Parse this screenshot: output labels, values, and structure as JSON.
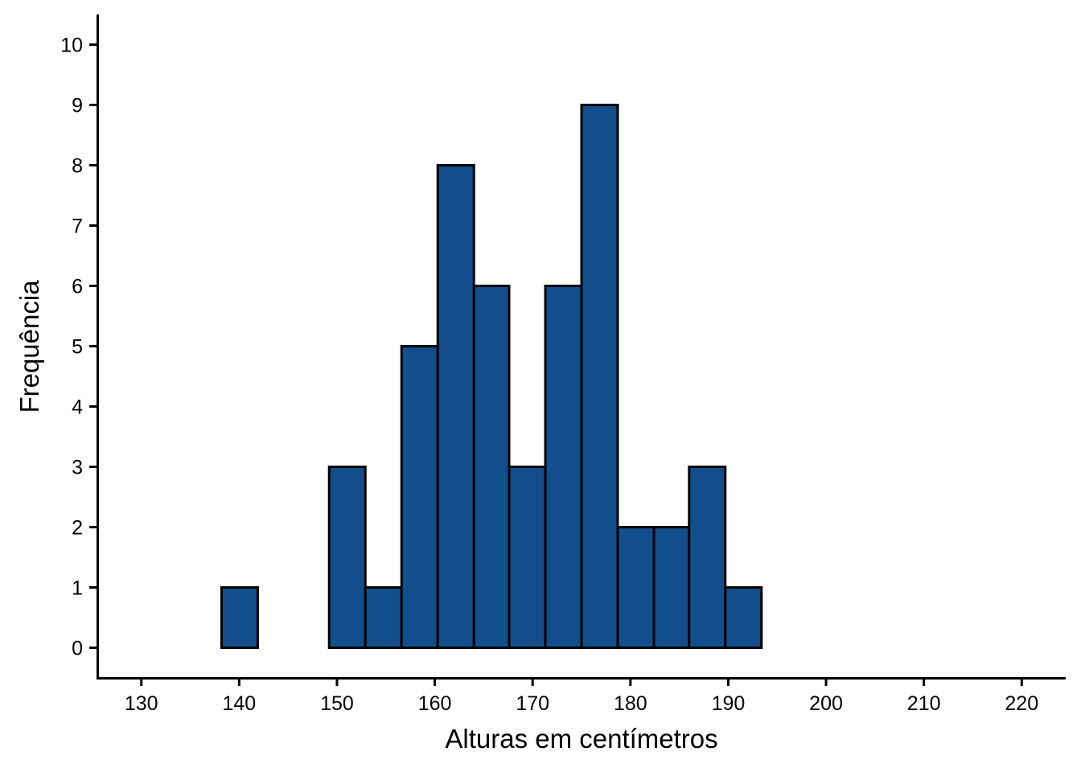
{
  "chart_data": {
    "type": "bar",
    "title": "",
    "xlabel": "Alturas em centímetros",
    "ylabel": "Frequência",
    "bin_edges": [
      138.2,
      141.9,
      145.6,
      149.2,
      152.9,
      156.6,
      160.3,
      164.0,
      167.6,
      171.3,
      175.0,
      178.7,
      182.4,
      186.0,
      189.7,
      193.4
    ],
    "values": [
      1,
      0,
      0,
      3,
      1,
      5,
      8,
      6,
      3,
      6,
      9,
      2,
      2,
      3,
      1
    ],
    "xlim": [
      125.5,
      224.5
    ],
    "ylim": [
      -0.5,
      10.5
    ],
    "x_ticks": [
      "130",
      "140",
      "150",
      "160",
      "170",
      "180",
      "190",
      "200",
      "210",
      "220"
    ],
    "y_ticks": [
      "0",
      "1",
      "2",
      "3",
      "4",
      "5",
      "6",
      "7",
      "8",
      "9",
      "10"
    ],
    "grid": false,
    "legend": "none",
    "colors": {
      "bar_fill": "#114e8b",
      "bar_stroke": "#000000",
      "axis": "#000000"
    }
  }
}
